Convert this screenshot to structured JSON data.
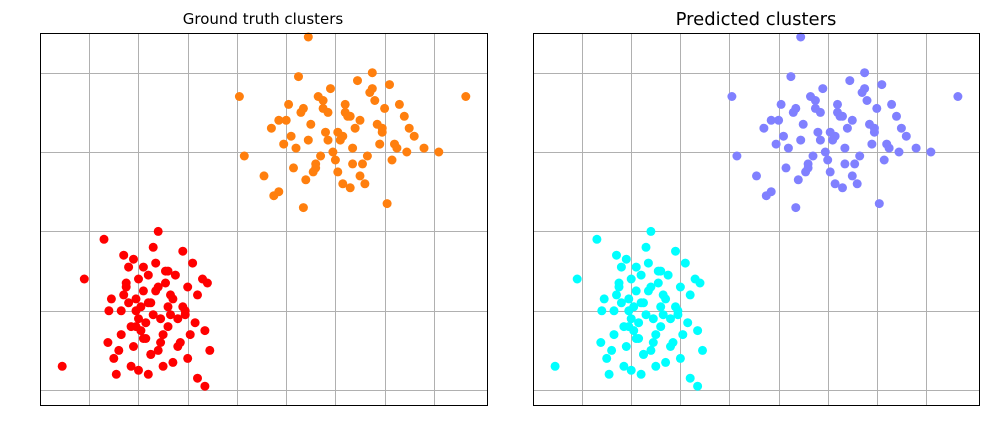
{
  "chart_data": [
    {
      "type": "scatter",
      "title": "Ground truth clusters",
      "grid": true,
      "xlim": [
        0,
        9.1
      ],
      "ylim": [
        -0.2,
        4.5
      ],
      "series": [
        {
          "color": "#ff0000",
          "x": [
            0.45,
            0.9,
            1.4,
            1.38,
            1.8,
            1.75,
            2.4,
            2.9,
            1.95,
            3.4,
            3.45,
            3.35,
            3.2,
            1.3,
            2.25,
            1.55,
            2.1,
            1.7,
            2.6,
            2.2,
            3.0,
            1.85,
            2.45,
            3.1,
            2.0,
            1.65,
            2.8,
            2.35,
            2.95,
            1.45,
            2.55,
            2.15,
            3.15,
            1.9,
            2.7,
            2.05,
            2.65,
            1.6,
            2.3,
            2.85,
            1.95,
            2.5,
            3.3,
            2.0,
            2.25,
            1.75,
            2.6,
            2.4,
            2.75,
            1.5,
            2.1,
            3.05,
            2.2,
            1.8,
            2.9,
            2.55,
            1.65,
            2.45,
            2.3,
            2.0,
            3.2,
            2.15,
            1.9,
            2.7,
            2.35,
            1.85,
            2.5,
            2.05,
            2.8,
            3.35,
            1.7,
            2.6,
            2.25,
            2.95,
            2.1,
            2.4,
            1.95,
            3.0,
            2.65,
            2.2
          ],
          "y": [
            0.3,
            1.4,
            1.0,
            0.6,
            1.1,
            1.35,
            2.0,
            1.75,
            1.15,
            1.35,
            0.5,
            0.05,
            0.15,
            1.9,
            0.45,
            0.2,
            1.55,
            1.7,
            1.05,
            1.45,
            1.3,
            0.8,
            0.9,
            1.6,
            0.25,
            0.7,
            0.55,
            1.25,
            0.95,
            1.15,
            1.5,
            0.65,
            0.85,
            1.65,
            0.35,
            0.75,
            1.2,
            0.5,
            1.8,
            0.6,
            1.0,
            0.3,
            1.4,
            0.9,
            1.1,
            1.3,
            0.8,
            0.5,
            1.45,
            0.4,
            1.25,
            0.7,
            0.2,
            1.55,
            1.05,
            1.35,
            1.0,
            0.6,
            0.95,
            1.4,
            1.2,
            0.85,
            0.55,
            1.15,
            1.6,
            0.3,
            0.7,
            1.05,
            0.9,
            0.75,
            1.2,
            1.5,
            0.45,
            1.0,
            0.65,
            1.3,
            0.8,
            0.4,
            0.95,
            1.1
          ]
        },
        {
          "color": "#ff7f0e",
          "x": [
            5.45,
            4.05,
            4.15,
            4.85,
            7.25,
            8.65,
            8.1,
            5.35,
            7.05,
            6.75,
            5.85,
            4.7,
            6.2,
            5.05,
            6.5,
            5.6,
            6.95,
            5.25,
            6.05,
            7.4,
            5.75,
            6.35,
            4.55,
            6.6,
            5.9,
            7.15,
            5.5,
            6.8,
            6.15,
            4.95,
            5.7,
            6.45,
            7.5,
            5.15,
            6.25,
            5.95,
            6.7,
            5.4,
            7.0,
            6.1,
            5.3,
            6.55,
            5.8,
            7.3,
            6.3,
            4.85,
            6.9,
            5.65,
            6.0,
            7.6,
            5.2,
            6.4,
            5.55,
            7.1,
            6.2,
            4.75,
            6.85,
            5.45,
            6.65,
            5.85,
            7.45,
            6.05,
            5.0,
            6.5,
            5.35,
            7.2,
            6.75,
            5.6,
            6.3,
            5.1,
            7.8,
            6.15,
            5.75,
            6.95,
            6.35
          ],
          "y": [
            4.45,
            3.7,
            2.95,
            2.5,
            3.05,
            3.7,
            3.0,
            2.3,
            2.35,
            4.0,
            3.15,
            3.3,
            3.5,
            3.6,
            3.4,
            2.85,
            3.25,
            3.95,
            2.75,
            3.45,
            3.55,
            3.05,
            2.7,
            2.6,
            3.8,
            2.9,
            3.35,
            3.65,
            3.2,
            3.1,
            2.95,
            3.9,
            3.3,
            2.8,
            3.45,
            3.0,
            3.75,
            2.65,
            3.55,
            3.15,
            3.5,
            2.85,
            3.25,
            3.6,
            2.55,
            3.4,
            3.1,
            3.7,
            2.9,
            3.2,
            3.05,
            3.3,
            2.75,
            3.85,
            3.6,
            2.45,
            3.35,
            3.15,
            2.95,
            3.5,
            3.0,
            3.25,
            3.4,
            2.7,
            3.55,
            3.1,
            3.8,
            2.8,
            3.45,
            3.2,
            3.05,
            2.6,
            3.65,
            3.3,
            2.85
          ]
        }
      ]
    },
    {
      "type": "scatter",
      "title": "Predicted clusters",
      "grid": true,
      "xlim": [
        0,
        9.1
      ],
      "ylim": [
        -0.2,
        4.5
      ],
      "series": [
        {
          "color": "#00ffff",
          "x": [
            0.45,
            0.9,
            1.4,
            1.38,
            1.8,
            1.75,
            2.4,
            2.9,
            1.95,
            3.4,
            3.45,
            3.35,
            3.2,
            1.3,
            2.25,
            1.55,
            2.1,
            1.7,
            2.6,
            2.2,
            3.0,
            1.85,
            2.45,
            3.1,
            2.0,
            1.65,
            2.8,
            2.35,
            2.95,
            1.45,
            2.55,
            2.15,
            3.15,
            1.9,
            2.7,
            2.05,
            2.65,
            1.6,
            2.3,
            2.85,
            1.95,
            2.5,
            3.3,
            2.0,
            2.25,
            1.75,
            2.6,
            2.4,
            2.75,
            1.5,
            2.1,
            3.05,
            2.2,
            1.8,
            2.9,
            2.55,
            1.65,
            2.45,
            2.3,
            2.0,
            3.2,
            2.15,
            1.9,
            2.7,
            2.35,
            1.85,
            2.5,
            2.05,
            2.8,
            3.35,
            1.7,
            2.6,
            2.25,
            2.95,
            2.1,
            2.4,
            1.95,
            3.0,
            2.65,
            2.2
          ],
          "y": [
            0.3,
            1.4,
            1.0,
            0.6,
            1.1,
            1.35,
            2.0,
            1.75,
            1.15,
            1.35,
            0.5,
            0.05,
            0.15,
            1.9,
            0.45,
            0.2,
            1.55,
            1.7,
            1.05,
            1.45,
            1.3,
            0.8,
            0.9,
            1.6,
            0.25,
            0.7,
            0.55,
            1.25,
            0.95,
            1.15,
            1.5,
            0.65,
            0.85,
            1.65,
            0.35,
            0.75,
            1.2,
            0.5,
            1.8,
            0.6,
            1.0,
            0.3,
            1.4,
            0.9,
            1.1,
            1.3,
            0.8,
            0.5,
            1.45,
            0.4,
            1.25,
            0.7,
            0.2,
            1.55,
            1.05,
            1.35,
            1.0,
            0.6,
            0.95,
            1.4,
            1.2,
            0.85,
            0.55,
            1.15,
            1.6,
            0.3,
            0.7,
            1.05,
            0.9,
            0.75,
            1.2,
            1.5,
            0.45,
            1.0,
            0.65,
            1.3,
            0.8,
            0.4,
            0.95,
            1.1
          ]
        },
        {
          "color": "#8080ff",
          "x": [
            5.45,
            4.05,
            4.15,
            4.85,
            7.25,
            8.65,
            8.1,
            5.35,
            7.05,
            6.75,
            5.85,
            4.7,
            6.2,
            5.05,
            6.5,
            5.6,
            6.95,
            5.25,
            6.05,
            7.4,
            5.75,
            6.35,
            4.55,
            6.6,
            5.9,
            7.15,
            5.5,
            6.8,
            6.15,
            4.95,
            5.7,
            6.45,
            7.5,
            5.15,
            6.25,
            5.95,
            6.7,
            5.4,
            7.0,
            6.1,
            5.3,
            6.55,
            5.8,
            7.3,
            6.3,
            4.85,
            6.9,
            5.65,
            6.0,
            7.6,
            5.2,
            6.4,
            5.55,
            7.1,
            6.2,
            4.75,
            6.85,
            5.45,
            6.65,
            5.85,
            7.45,
            6.05,
            5.0,
            6.5,
            5.35,
            7.2,
            6.75,
            5.6,
            6.3,
            5.1,
            7.8,
            6.15,
            5.75,
            6.95,
            6.35
          ],
          "y": [
            4.45,
            3.7,
            2.95,
            2.5,
            3.05,
            3.7,
            3.0,
            2.3,
            2.35,
            4.0,
            3.15,
            3.3,
            3.5,
            3.6,
            3.4,
            2.85,
            3.25,
            3.95,
            2.75,
            3.45,
            3.55,
            3.05,
            2.7,
            2.6,
            3.8,
            2.9,
            3.35,
            3.65,
            3.2,
            3.1,
            2.95,
            3.9,
            3.3,
            2.8,
            3.45,
            3.0,
            3.75,
            2.65,
            3.55,
            3.15,
            3.5,
            2.85,
            3.25,
            3.6,
            2.55,
            3.4,
            3.1,
            3.7,
            2.9,
            3.2,
            3.05,
            3.3,
            2.75,
            3.85,
            3.6,
            2.45,
            3.35,
            3.15,
            2.95,
            3.5,
            3.0,
            3.25,
            3.4,
            2.7,
            3.55,
            3.1,
            3.8,
            2.8,
            3.45,
            3.2,
            3.05,
            2.6,
            3.65,
            3.3,
            2.85
          ]
        }
      ]
    }
  ]
}
